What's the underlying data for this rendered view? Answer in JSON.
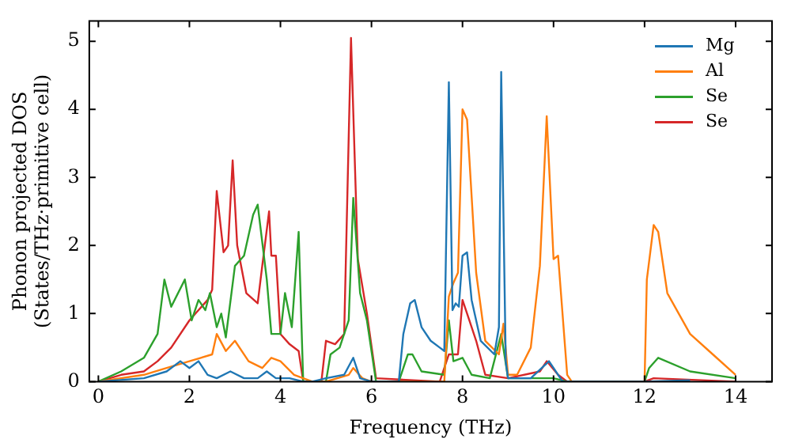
{
  "chart_data": {
    "type": "line",
    "xlabel": "Frequency (THz)",
    "ylabel": "Phonon projected DOS\n(States/THz·primitive cell)",
    "xlim": [
      -0.2,
      14.8
    ],
    "ylim": [
      0,
      5.3
    ],
    "xticks": [
      0,
      2,
      4,
      6,
      8,
      10,
      12,
      14
    ],
    "yticks": [
      0,
      1,
      2,
      3,
      4,
      5
    ],
    "grid": false,
    "legend": "top right",
    "marker": "none",
    "line_style": "solid",
    "series": [
      {
        "name": "Mg",
        "color": "#1f77b4",
        "x": [
          0,
          1,
          1.5,
          1.8,
          2.0,
          2.2,
          2.4,
          2.6,
          2.9,
          3.2,
          3.5,
          3.7,
          3.9,
          4.2,
          4.5,
          4.7,
          5.0,
          5.4,
          5.6,
          5.75,
          6.0,
          6.6,
          6.7,
          6.85,
          6.95,
          7.1,
          7.3,
          7.5,
          7.6,
          7.7,
          7.78,
          7.85,
          7.92,
          8.0,
          8.1,
          8.2,
          8.4,
          8.7,
          8.8,
          8.85,
          8.95,
          9.0,
          9.5,
          9.9,
          10.0,
          10.2,
          12.0,
          13.0
        ],
        "values": [
          0,
          0.05,
          0.15,
          0.3,
          0.2,
          0.3,
          0.1,
          0.05,
          0.15,
          0.05,
          0.05,
          0.15,
          0.05,
          0.05,
          0,
          0,
          0.05,
          0.1,
          0.35,
          0.05,
          0,
          0,
          0.7,
          1.15,
          1.2,
          0.8,
          0.6,
          0.5,
          0.45,
          4.4,
          1.05,
          1.15,
          1.1,
          1.85,
          1.9,
          1.2,
          0.6,
          0.4,
          0.8,
          4.55,
          0.3,
          0.05,
          0.05,
          0.3,
          0.2,
          0,
          0,
          0.02
        ]
      },
      {
        "name": "Al",
        "color": "#ff7f0e",
        "x": [
          0,
          1,
          1.5,
          2.0,
          2.5,
          2.6,
          2.8,
          3.0,
          3.3,
          3.6,
          3.8,
          4.0,
          4.3,
          4.5,
          4.7,
          5.0,
          5.5,
          5.6,
          5.8,
          6.0,
          7.6,
          7.7,
          7.8,
          7.9,
          8.0,
          8.1,
          8.3,
          8.5,
          8.8,
          8.9,
          9.0,
          9.2,
          9.5,
          9.7,
          9.85,
          10.0,
          10.1,
          10.3,
          10.4,
          12.0,
          12.05,
          12.2,
          12.3,
          12.5,
          13.0,
          13.5,
          14.0
        ],
        "values": [
          0,
          0.1,
          0.2,
          0.3,
          0.4,
          0.7,
          0.45,
          0.6,
          0.3,
          0.2,
          0.35,
          0.3,
          0.1,
          0.05,
          0,
          0,
          0.1,
          0.2,
          0.05,
          0,
          0,
          1.25,
          1.45,
          1.6,
          4.0,
          3.85,
          1.6,
          0.6,
          0.4,
          0.85,
          0.1,
          0.1,
          0.5,
          1.7,
          3.9,
          1.8,
          1.85,
          0.1,
          0,
          0,
          1.5,
          2.3,
          2.2,
          1.3,
          0.7,
          0.4,
          0.1
        ]
      },
      {
        "name": "Se",
        "color": "#2ca02c",
        "x": [
          0,
          0.5,
          1.0,
          1.3,
          1.45,
          1.6,
          1.9,
          2.05,
          2.2,
          2.35,
          2.45,
          2.6,
          2.7,
          2.8,
          3.0,
          3.2,
          3.4,
          3.5,
          3.7,
          3.8,
          4.0,
          4.1,
          4.25,
          4.4,
          4.5,
          5.0,
          5.1,
          5.3,
          5.5,
          5.6,
          5.75,
          5.9,
          6.1,
          6.6,
          6.8,
          6.9,
          7.1,
          7.6,
          7.7,
          7.8,
          8.0,
          8.2,
          8.6,
          8.85,
          9.0,
          10.0,
          10.3,
          12.0,
          12.1,
          12.3,
          13.0,
          14.0
        ],
        "values": [
          0,
          0.15,
          0.35,
          0.7,
          1.5,
          1.1,
          1.5,
          0.9,
          1.2,
          1.05,
          1.3,
          0.8,
          1.0,
          0.65,
          1.7,
          1.85,
          2.45,
          2.6,
          1.5,
          0.7,
          0.7,
          1.3,
          0.8,
          2.2,
          0,
          0,
          0.4,
          0.5,
          0.9,
          2.7,
          1.3,
          0.9,
          0,
          0,
          0.4,
          0.4,
          0.15,
          0.1,
          0.9,
          0.3,
          0.35,
          0.1,
          0.05,
          0.7,
          0.05,
          0.05,
          0,
          0,
          0.2,
          0.35,
          0.15,
          0.05
        ]
      },
      {
        "name": "Se",
        "color": "#d62728",
        "x": [
          0,
          0.5,
          1.0,
          1.3,
          1.6,
          2.0,
          2.2,
          2.4,
          2.5,
          2.6,
          2.75,
          2.85,
          2.95,
          3.05,
          3.25,
          3.5,
          3.6,
          3.75,
          3.8,
          3.9,
          4.0,
          4.2,
          4.4,
          4.5,
          4.9,
          5.0,
          5.2,
          5.4,
          5.55,
          5.7,
          5.9,
          6.1,
          7.5,
          7.7,
          7.9,
          8.0,
          8.15,
          8.3,
          8.5,
          9.0,
          9.7,
          9.85,
          10.1,
          10.3,
          12.0,
          12.2,
          14.0
        ],
        "values": [
          0,
          0.1,
          0.15,
          0.3,
          0.5,
          0.9,
          1.05,
          1.2,
          1.35,
          2.8,
          1.9,
          2.0,
          3.25,
          2.0,
          1.3,
          1.15,
          1.7,
          2.5,
          1.85,
          1.85,
          0.7,
          0.55,
          0.45,
          0,
          0,
          0.6,
          0.55,
          0.7,
          5.05,
          1.8,
          1.0,
          0.05,
          0,
          0.4,
          0.4,
          1.2,
          0.9,
          0.6,
          0.1,
          0.05,
          0.15,
          0.3,
          0.1,
          0,
          0,
          0.05,
          0
        ]
      }
    ]
  }
}
